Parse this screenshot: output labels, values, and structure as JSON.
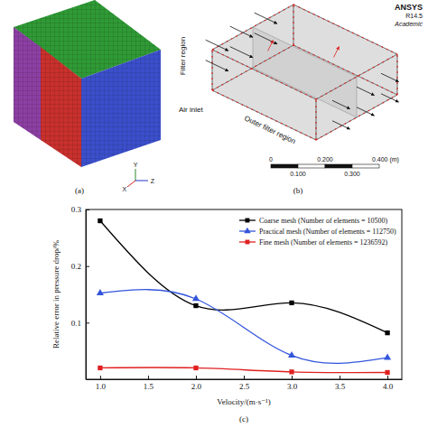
{
  "figure": {
    "panel_labels": [
      "(a)",
      "(b)",
      "(c)"
    ],
    "diagram_a": {
      "axes": [
        "Y",
        "X",
        "Z"
      ]
    },
    "diagram_b": {
      "header": [
        "ANSYS",
        "R14.5",
        "Academic"
      ],
      "labels": [
        "Filter region",
        "Air inlet",
        "Outer filter region"
      ],
      "scale_bar": {
        "top": [
          "0",
          "0.200",
          "0.400 (m)"
        ],
        "bottom": [
          "0.100",
          "0.300"
        ]
      }
    }
  },
  "chart_data": {
    "type": "line",
    "x_label": "Velocity/(m·s⁻¹)",
    "y_label": "Relative error in pressure drop/%",
    "x": [
      1.0,
      2.0,
      3.0,
      4.0
    ],
    "series": [
      {
        "name": "Coarse mesh (Number of elements = 10500)",
        "color": "#000000",
        "marker": "square",
        "line_style": "solid",
        "values": [
          0.28,
          0.13,
          0.135,
          0.082
        ]
      },
      {
        "name": "Practical mesh (Number of elements = 112750)",
        "color": "#3355dd",
        "marker": "triangle",
        "line_style": "solid",
        "values": [
          0.152,
          0.142,
          0.042,
          0.038
        ]
      },
      {
        "name": "Fine mesh (Number of elements = 1236592)",
        "color": "#e02020",
        "marker": "square",
        "line_style": "solid",
        "values": [
          0.02,
          0.02,
          0.013,
          0.012
        ]
      }
    ],
    "xlim": [
      0.85,
      4.15
    ],
    "xticks": [
      {
        "value": 1,
        "label": "1.0"
      },
      {
        "value": 1.5,
        "label": "1.5"
      },
      {
        "value": 2,
        "label": "2.0"
      },
      {
        "value": 2.5,
        "label": "2.5"
      },
      {
        "value": 3,
        "label": "3.0"
      },
      {
        "value": 3.5,
        "label": "3.5"
      },
      {
        "value": 4,
        "label": "4.0"
      }
    ],
    "ylim": [
      0,
      0.3
    ],
    "yticks": [
      0.1,
      0.2,
      0.3
    ],
    "grid": false,
    "legend": "upper right"
  }
}
